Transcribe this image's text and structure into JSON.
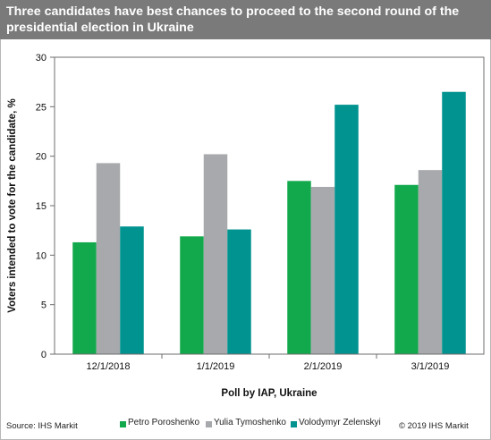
{
  "title": "Three candidates have best chances to proceed to the second round of the presidential election in Ukraine",
  "source": "Source: IHS Markit",
  "copyright": "© 2019 IHS Markit",
  "colors": {
    "title_bg": "#7a7a7a",
    "poroshenko": "#12a84c",
    "tymoshenko": "#a7a9ac",
    "zelenskyi": "#00938f"
  },
  "chart_data": {
    "type": "bar",
    "title": "Three candidates have best chances to proceed to the second round of the presidential election in Ukraine",
    "xlabel": "Poll by IAP, Ukraine",
    "ylabel": "Voters intended to vote for the candidate, %",
    "categories": [
      "12/1/2018",
      "1/1/2019",
      "2/1/2019",
      "3/1/2019"
    ],
    "ylim": [
      0,
      30
    ],
    "yticks": [
      0,
      5,
      10,
      15,
      20,
      25,
      30
    ],
    "grid": false,
    "legend_position": "bottom",
    "series": [
      {
        "name": "Petro Poroshenko",
        "color": "#12a84c",
        "values": [
          11.3,
          11.9,
          17.5,
          17.1
        ]
      },
      {
        "name": "Yulia Tymoshenko",
        "color": "#a7a9ac",
        "values": [
          19.3,
          20.2,
          16.9,
          18.6
        ]
      },
      {
        "name": "Volodymyr Zelenskyi",
        "color": "#00938f",
        "values": [
          12.9,
          12.6,
          25.2,
          26.5
        ]
      }
    ]
  }
}
